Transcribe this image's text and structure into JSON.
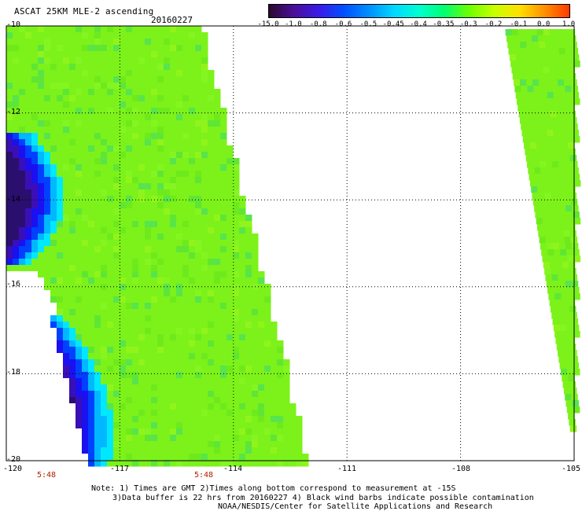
{
  "header": {
    "title": "ASCAT 25KM MLE-2 ascending",
    "date": "20160227"
  },
  "colorbar": {
    "labels": [
      "-15.0",
      "-1.0",
      "-0.8",
      "-0.6",
      "-0.5",
      "-0.45",
      "-0.4",
      "-0.35",
      "-0.3",
      "-0.2",
      "-0.1",
      "0.0",
      "1.0"
    ],
    "colors": [
      "#2b0a2e",
      "#4a0f9a",
      "#3a1ae8",
      "#0050ff",
      "#0090ff",
      "#00d8ff",
      "#00ffd0",
      "#00ff70",
      "#6eff00",
      "#c8ff00",
      "#ffe000",
      "#ff9000",
      "#ff3a00"
    ]
  },
  "map": {
    "lat_labels": [
      "-10",
      "-12",
      "-14",
      "-16",
      "-18",
      "-20"
    ],
    "lon_labels": [
      "-120",
      "-117",
      "-114",
      "-111",
      "-108",
      "-105"
    ],
    "lat_range": [
      -20,
      -10
    ],
    "lon_range": [
      -120,
      -105
    ],
    "times": [
      "5:48",
      "5:48"
    ],
    "base_color": "#7cf21a",
    "alt_colors": [
      "#6eea1c",
      "#84f520",
      "#5fe635",
      "#58e44d",
      "#90f41a"
    ],
    "low_colors": [
      "#00e8ff",
      "#00b8ff",
      "#0040ff",
      "#1a10f0",
      "#3a0fb8",
      "#2a0f6e"
    ]
  },
  "notes": {
    "line1": "Note: 1) Times are GMT 2)Times along bottom correspond to measurement at -15S",
    "line2": "3)Data buffer is 22 hrs from 20160227 4) Black wind barbs indicate possible contamination",
    "line3": "NOAA/NESDIS/Center for Satellite Applications and Research"
  }
}
